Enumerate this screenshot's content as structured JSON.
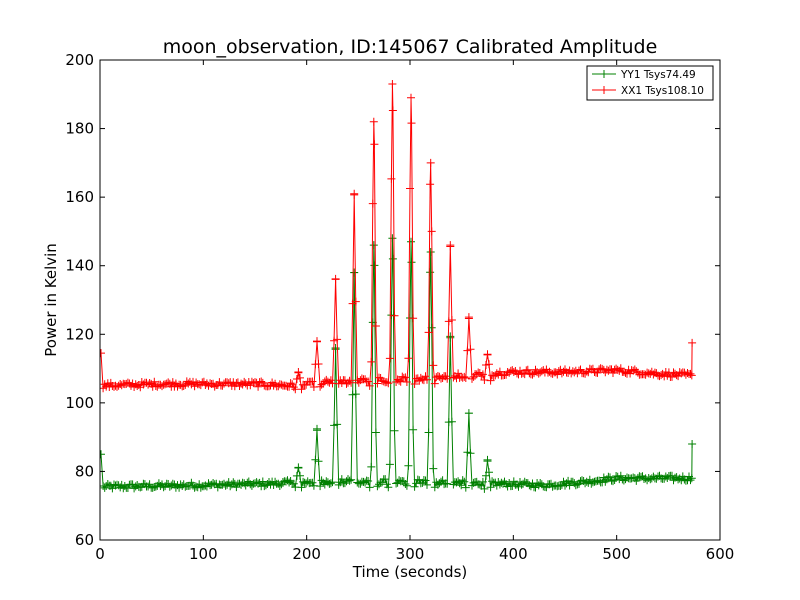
{
  "chart_data": {
    "type": "line",
    "title": "moon_observation, ID:145067 Calibrated Amplitude",
    "xlabel": "Time (seconds)",
    "ylabel": "Power in Kelvin",
    "xlim": [
      0,
      600
    ],
    "ylim": [
      60,
      200
    ],
    "xticks": [
      "0",
      "100",
      "200",
      "300",
      "400",
      "500",
      "600"
    ],
    "yticks": [
      "60",
      "80",
      "100",
      "120",
      "140",
      "160",
      "180",
      "200"
    ],
    "grid": false,
    "legend_position": "top-right",
    "sample_interval_s": 1.5,
    "series": [
      {
        "name": "YY1 Tsys74.49",
        "color": "#008000",
        "baseline": [
          [
            0,
            75.5
          ],
          [
            60,
            75.8
          ],
          [
            150,
            76.3
          ],
          [
            220,
            77
          ],
          [
            300,
            77
          ],
          [
            380,
            76.5
          ],
          [
            430,
            76
          ],
          [
            470,
            77
          ],
          [
            500,
            78
          ],
          [
            540,
            78
          ],
          [
            572,
            78
          ]
        ],
        "peaks": [
          {
            "t": 192,
            "v": 81
          },
          {
            "t": 210,
            "v": 92
          },
          {
            "t": 228,
            "v": 116
          },
          {
            "t": 246,
            "v": 138
          },
          {
            "t": 265,
            "v": 146
          },
          {
            "t": 283,
            "v": 148
          },
          {
            "t": 301,
            "v": 147
          },
          {
            "t": 320,
            "v": 144
          },
          {
            "t": 339,
            "v": 119
          },
          {
            "t": 357,
            "v": 97
          },
          {
            "t": 375,
            "v": 83
          }
        ],
        "start": {
          "t": 1,
          "v": 85
        },
        "end": {
          "t": 573,
          "v": 88
        }
      },
      {
        "name": "XX1 Tsys108.10",
        "color": "#ff0000",
        "baseline": [
          [
            0,
            105
          ],
          [
            60,
            105.5
          ],
          [
            150,
            105.5
          ],
          [
            190,
            105
          ],
          [
            220,
            106
          ],
          [
            300,
            107
          ],
          [
            400,
            109
          ],
          [
            450,
            109
          ],
          [
            500,
            109.5
          ],
          [
            540,
            108.5
          ],
          [
            572,
            108
          ]
        ],
        "peaks": [
          {
            "t": 192,
            "v": 109
          },
          {
            "t": 210,
            "v": 118
          },
          {
            "t": 228,
            "v": 136
          },
          {
            "t": 246,
            "v": 161
          },
          {
            "t": 265,
            "v": 182
          },
          {
            "t": 283,
            "v": 193
          },
          {
            "t": 301,
            "v": 189
          },
          {
            "t": 320,
            "v": 170
          },
          {
            "t": 339,
            "v": 146
          },
          {
            "t": 357,
            "v": 125
          },
          {
            "t": 375,
            "v": 114
          }
        ],
        "start": {
          "t": 1,
          "v": 114.5
        },
        "end": {
          "t": 573,
          "v": 117.5
        }
      }
    ]
  }
}
